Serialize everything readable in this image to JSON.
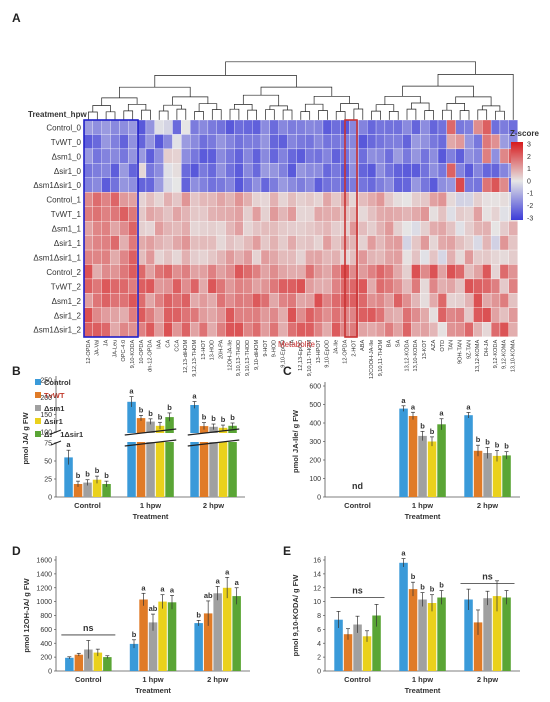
{
  "panels": {
    "A": {
      "label": "A",
      "treatment_label": "Treatment_hpw",
      "metabolite_label": "Metabolite",
      "zscore_title": "Z-score",
      "zscore_ticks": [
        "3",
        "2",
        "1",
        "0",
        "-1",
        "-2",
        "-3"
      ],
      "rows": [
        "Control_0",
        "TvWT_0",
        "Δsm1_0",
        "Δsir1_0",
        "Δsm1Δsir1_0",
        "Control_1",
        "TvWT_1",
        "Δsm1_1",
        "Δsir1_1",
        "Δsm1Δsir1_1",
        "Control_2",
        "TvWT_2",
        "Δsm1_2",
        "Δsir1_2",
        "Δsm1Δsir1_2"
      ],
      "columns": [
        "12-OPDA",
        "JA-Val",
        "JA",
        "JA-Leu",
        "OPC-4:0",
        "9,10-KODA",
        "10-OPDA",
        "dn-12-OPDA",
        "IAA",
        "CA",
        "CCA",
        "12,13-diHOM",
        "9,12,13-THOM",
        "13-HOT",
        "13-HOD",
        "20H-PA",
        "12OH-JA-Ile",
        "9,10,13-THOD",
        "9,10,13-THOD",
        "9,10-diHOM",
        "9-HOT",
        "9-HOD",
        "9,10-EpOD",
        "TA",
        "12,13-EpOD",
        "9,10,11-THOM",
        "13-HPOT",
        "9,10-EpOD",
        "JA-Ile",
        "12-OPDA",
        "2-HOT",
        "ABA",
        "12COOH-JA-Ile",
        "9,10,11-THOM",
        "BA",
        "SA",
        "13,12-KODA",
        "13,10-KODA",
        "13-KOT",
        "AZA",
        "OTD",
        "TAN",
        "9OH-TAN",
        "9Z-TAN",
        "13,12-KOMA",
        "DH-JA",
        "9,12-KODA",
        "9,12-KOMA",
        "13,10-KOMA"
      ],
      "blue_box_columns": "12-OPDA .. 9,10-KODA",
      "red_box_column": "12OH-JA-Ile"
    },
    "legend": [
      "Control",
      "TvWT",
      "Δsm1",
      "Δsir1",
      "Δsm1Δsir1"
    ],
    "B": {
      "label": "B",
      "ylabel": "pmol JA/ g FW",
      "xlabel": "Treatment"
    },
    "C": {
      "label": "C",
      "ylabel": "pmol JA-Ile/ g FW",
      "xlabel": "Treatment",
      "nd": "nd"
    },
    "D": {
      "label": "D",
      "ylabel": "pmol 12OH-JA/ g FW",
      "xlabel": "Treatment",
      "ns": "ns"
    },
    "E": {
      "label": "E",
      "ylabel": "pmol 9,10-KODA/ g FW",
      "xlabel": "Treatment",
      "ns": "ns"
    }
  },
  "colors": {
    "control": "#3a9ad9",
    "tvwt": "#e07b27",
    "sm1": "#a0a0a0",
    "sir1": "#ead11c",
    "dsm1dsir1": "#5aa535"
  },
  "chart_data": [
    {
      "type": "heatmap",
      "title": "",
      "rows": [
        "Control_0",
        "TvWT_0",
        "Δsm1_0",
        "Δsir1_0",
        "Δsm1Δsir1_0",
        "Control_1",
        "TvWT_1",
        "Δsm1_1",
        "Δsir1_1",
        "Δsm1Δsir1_1",
        "Control_2",
        "TvWT_2",
        "Δsm1_2",
        "Δsir1_2",
        "Δsm1Δsir1_2"
      ],
      "value_range": [
        -3,
        3
      ],
      "note_pattern": "time-0 rows mostly negative z-scores; 1 hpw and 2 hpw rows mostly positive"
    },
    {
      "type": "bar",
      "xlabel": "Treatment",
      "ylabel": "pmol JA/ g FW",
      "categories": [
        "Control",
        "1 hpw",
        "2 hpw"
      ],
      "ylim_lower": [
        0,
        75
      ],
      "ylim_upper": [
        100,
        250
      ],
      "yticks": [
        "0",
        "25",
        "50",
        "75",
        "100",
        "150",
        "200",
        "250"
      ],
      "series": [
        {
          "name": "Control",
          "values": [
            55,
            187,
            178
          ],
          "errors": [
            10,
            15,
            10
          ]
        },
        {
          "name": "TvWT",
          "values": [
            18,
            140,
            117
          ],
          "errors": [
            4,
            8,
            10
          ]
        },
        {
          "name": "Δsm1",
          "values": [
            20,
            130,
            115
          ],
          "errors": [
            4,
            8,
            8
          ]
        },
        {
          "name": "Δsir1",
          "values": [
            24,
            118,
            112
          ],
          "errors": [
            5,
            10,
            8
          ]
        },
        {
          "name": "Δsm1Δsir1",
          "values": [
            18,
            143,
            118
          ],
          "errors": [
            4,
            12,
            8
          ]
        }
      ],
      "letters": [
        [
          "a",
          "b",
          "b",
          "b",
          "b"
        ],
        [
          "a",
          "b",
          "b",
          "b",
          "b"
        ],
        [
          "a",
          "b",
          "b",
          "b",
          "b"
        ]
      ]
    },
    {
      "type": "bar",
      "xlabel": "Treatment",
      "ylabel": "pmol JA-Ile/ g FW",
      "categories": [
        "Control",
        "1 hpw",
        "2 hpw"
      ],
      "ylim": [
        0,
        600
      ],
      "yticks": [
        "0",
        "100",
        "200",
        "300",
        "400",
        "500",
        "600"
      ],
      "series": [
        {
          "name": "Control",
          "values": [
            0,
            478,
            442
          ],
          "errors": [
            0,
            15,
            15
          ]
        },
        {
          "name": "TvWT",
          "values": [
            0,
            438,
            250
          ],
          "errors": [
            0,
            20,
            30
          ]
        },
        {
          "name": "Δsm1",
          "values": [
            0,
            330,
            238
          ],
          "errors": [
            0,
            25,
            30
          ]
        },
        {
          "name": "Δsir1",
          "values": [
            0,
            300,
            222
          ],
          "errors": [
            0,
            25,
            30
          ]
        },
        {
          "name": "Δsm1Δsir1",
          "values": [
            0,
            393,
            225
          ],
          "errors": [
            0,
            30,
            20
          ]
        }
      ],
      "letters": [
        [
          "",
          "",
          "",
          "",
          ""
        ],
        [
          "a",
          "a",
          "b",
          "b",
          "a"
        ],
        [
          "a",
          "b",
          "b",
          "b",
          "b"
        ]
      ]
    },
    {
      "type": "bar",
      "xlabel": "Treatment",
      "ylabel": "pmol 12OH-JA/ g FW",
      "categories": [
        "Control",
        "1 hpw",
        "2 hpw"
      ],
      "ylim": [
        0,
        1600
      ],
      "yticks": [
        "0",
        "200",
        "400",
        "600",
        "800",
        "1000",
        "1200",
        "1400",
        "1600"
      ],
      "series": [
        {
          "name": "Control",
          "values": [
            190,
            390,
            690
          ],
          "errors": [
            15,
            60,
            40
          ]
        },
        {
          "name": "TvWT",
          "values": [
            235,
            1030,
            830
          ],
          "errors": [
            20,
            90,
            180
          ]
        },
        {
          "name": "Δsm1",
          "values": [
            310,
            700,
            1120
          ],
          "errors": [
            130,
            120,
            100
          ]
        },
        {
          "name": "Δsir1",
          "values": [
            265,
            1000,
            1200
          ],
          "errors": [
            50,
            100,
            150
          ]
        },
        {
          "name": "Δsm1Δsir1",
          "values": [
            200,
            990,
            1080
          ],
          "errors": [
            20,
            100,
            120
          ]
        }
      ],
      "letters": [
        [
          "",
          "",
          "",
          "",
          ""
        ],
        [
          "b",
          "a",
          "ab",
          "a",
          "a"
        ],
        [
          "b",
          "ab",
          "a",
          "a",
          "a"
        ]
      ]
    },
    {
      "type": "bar",
      "xlabel": "Treatment",
      "ylabel": "pmol 9,10-KODA/ g FW",
      "categories": [
        "Control",
        "1 hpw",
        "2 hpw"
      ],
      "ylim": [
        0,
        16
      ],
      "yticks": [
        "0",
        "2",
        "4",
        "6",
        "8",
        "10",
        "12",
        "14",
        "16"
      ],
      "series": [
        {
          "name": "Control",
          "values": [
            7.4,
            15.6,
            10.3
          ],
          "errors": [
            1.2,
            0.6,
            1.5
          ]
        },
        {
          "name": "TvWT",
          "values": [
            5.3,
            11.8,
            7.0
          ],
          "errors": [
            0.8,
            1.0,
            1.8
          ]
        },
        {
          "name": "Δsm1",
          "values": [
            6.7,
            10.3,
            10.5
          ],
          "errors": [
            1.2,
            1.0,
            1.0
          ]
        },
        {
          "name": "Δsir1",
          "values": [
            5.0,
            9.8,
            10.8
          ],
          "errors": [
            0.8,
            1.2,
            2.2
          ]
        },
        {
          "name": "Δsm1Δsir1",
          "values": [
            8.0,
            10.6,
            10.6
          ],
          "errors": [
            1.6,
            1.0,
            1.0
          ]
        }
      ],
      "letters": [
        [
          "",
          "",
          "",
          "",
          ""
        ],
        [
          "a",
          "b",
          "b",
          "b",
          "b"
        ],
        [
          "",
          "",
          "",
          "",
          ""
        ]
      ]
    }
  ]
}
